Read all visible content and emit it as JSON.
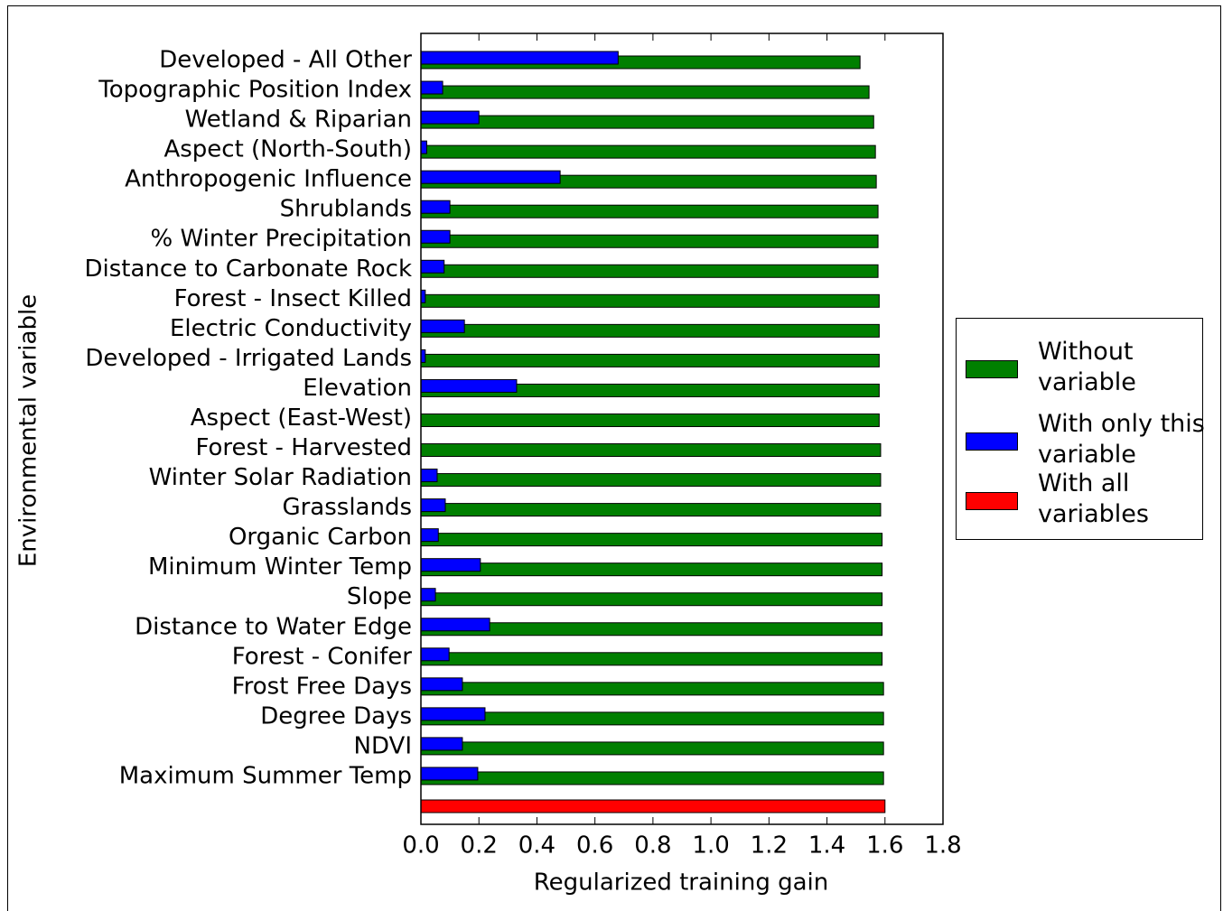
{
  "chart_data": {
    "type": "barh",
    "xlabel": "Regularized training gain",
    "ylabel": "Environmental variable",
    "categories": [
      "Developed - All Other",
      "Topographic Position Index",
      "Wetland & Riparian",
      "Aspect (North-South)",
      "Anthropogenic Influence",
      "Shrublands",
      "% Winter Precipitation",
      "Distance to Carbonate Rock",
      "Forest - Insect Killed",
      "Electric Conductivity",
      "Developed - Irrigated Lands",
      "Elevation",
      "Aspect (East-West)",
      "Forest - Harvested",
      "Winter Solar Radiation",
      "Grasslands",
      "Organic Carbon",
      "Minimum Winter Temp",
      "Slope",
      "Distance to Water Edge",
      "Forest - Conifer",
      "Frost Free Days",
      "Degree Days",
      "NDVI",
      "Maximum Summer Temp",
      null
    ],
    "series": [
      {
        "name": "Without variable",
        "color": "#007f00",
        "values": [
          1.514,
          1.545,
          1.561,
          1.567,
          1.57,
          1.576,
          1.576,
          1.576,
          1.58,
          1.58,
          1.58,
          1.58,
          1.58,
          1.585,
          1.585,
          1.585,
          1.59,
          1.59,
          1.59,
          1.59,
          1.59,
          1.595,
          1.595,
          1.595,
          1.595,
          null
        ]
      },
      {
        "name": "With only this variable",
        "color": "#0000ff",
        "values": [
          0.68,
          0.075,
          0.2,
          0.02,
          0.48,
          0.1,
          0.1,
          0.08,
          0.015,
          0.15,
          0.015,
          0.33,
          0,
          0,
          0.056,
          0.084,
          0.06,
          0.205,
          0.05,
          0.237,
          0.097,
          0.143,
          0.221,
          0.143,
          0.196,
          null
        ]
      },
      {
        "name": "With all variables",
        "color": "#ff0000",
        "values": [
          null,
          null,
          null,
          null,
          null,
          null,
          null,
          null,
          null,
          null,
          null,
          null,
          null,
          null,
          null,
          null,
          null,
          null,
          null,
          null,
          null,
          null,
          null,
          null,
          null,
          1.6
        ]
      }
    ],
    "xlim": [
      0,
      1.8
    ],
    "xticks": [
      {
        "value": 0,
        "label": "0.0"
      },
      0.2,
      0.4,
      0.6,
      0.8,
      {
        "value": 1,
        "label": "1.0"
      },
      1.2,
      1.4,
      1.6,
      1.8
    ]
  }
}
